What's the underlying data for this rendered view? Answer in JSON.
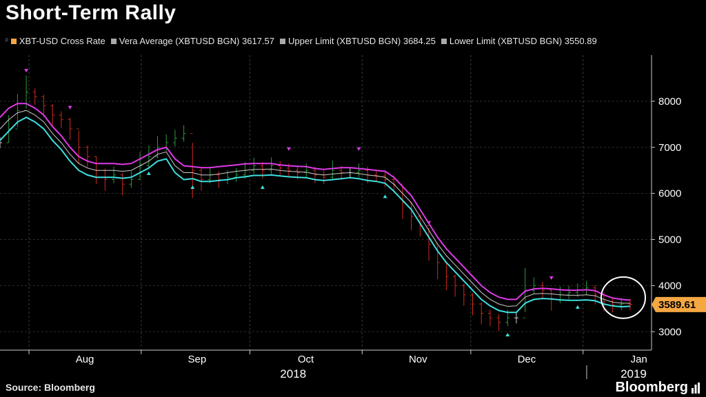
{
  "title": "Short-Term Rally",
  "legend": [
    {
      "label": "XBT-USD Cross Rate",
      "color": "#f5a742"
    },
    {
      "label": "Vera Average (XBTUSD BGN) 3617.57",
      "color": "#aaaaaa"
    },
    {
      "label": "Upper Limit (XBTUSD BGN) 3684.25",
      "color": "#aaaaaa"
    },
    {
      "label": "Lower Limit (XBTUSD BGN) 3550.89",
      "color": "#aaaaaa"
    }
  ],
  "source": "Source: Bloomberg",
  "brand": "Bloomberg",
  "colors": {
    "up": "#2e9a3a",
    "down": "#d42a1a",
    "neutral": "#cfcfcf",
    "band_upper": "#e03ae8",
    "band_lower": "#3fe0e0",
    "average": "#cccccc",
    "last_price_bg": "#f5a742"
  },
  "chart_data": {
    "type": "line",
    "title": "Short-Term Rally",
    "ylim": [
      2600,
      9000
    ],
    "yticks": [
      3000,
      4000,
      5000,
      6000,
      7000,
      8000
    ],
    "ytick_labels": [
      "3000",
      "4000",
      "5000",
      "6000",
      "7000",
      "8000"
    ],
    "x_range_days": [
      0,
      178
    ],
    "xticks": [
      {
        "label": "Aug",
        "day": 24
      },
      {
        "label": "Sep",
        "day": 55
      },
      {
        "label": "Oct",
        "day": 85
      },
      {
        "label": "Nov",
        "day": 116
      },
      {
        "label": "Dec",
        "day": 146
      },
      {
        "label": "Jan",
        "day": 177
      }
    ],
    "month_dividers": [
      8,
      39,
      69,
      100,
      130,
      161
    ],
    "year_labels": [
      {
        "label": "2018",
        "day": 80
      },
      {
        "label": "2019",
        "day": 174
      }
    ],
    "year_divider_day": 162,
    "last_price": "3589.61",
    "last_value": 3589.61,
    "series": [
      {
        "name": "XBT-USD Cross Rate",
        "role": "price",
        "values": [
          7100,
          7400,
          7800,
          8200,
          8100,
          7900,
          7700,
          7600,
          7400,
          7000,
          6800,
          6500,
          6300,
          6400,
          6200,
          6300,
          6600,
          6800,
          7000,
          7100,
          7200,
          7300,
          6500,
          6300,
          6400,
          6300,
          6350,
          6400,
          6500,
          6600,
          6500,
          6600,
          6550,
          6500,
          6450,
          6500,
          6400,
          6350,
          6500,
          6450,
          6450,
          6500,
          6400,
          6380,
          6300,
          6200,
          5800,
          5500,
          5300,
          4900,
          4500,
          4200,
          4000,
          3800,
          3600,
          3400,
          3300,
          3200,
          3300,
          3300,
          3900,
          4000,
          3900,
          3700,
          3800,
          3850,
          3900,
          3950,
          3800,
          3650,
          3580,
          3600,
          3590
        ]
      },
      {
        "name": "Vera Average (XBTUSD BGN)",
        "role": "average",
        "values": [
          7400,
          7600,
          7750,
          7800,
          7700,
          7550,
          7300,
          7100,
          6850,
          6650,
          6550,
          6500,
          6500,
          6500,
          6480,
          6500,
          6600,
          6700,
          6850,
          6900,
          6600,
          6450,
          6450,
          6400,
          6400,
          6420,
          6450,
          6480,
          6500,
          6520,
          6520,
          6530,
          6500,
          6480,
          6470,
          6460,
          6420,
          6400,
          6420,
          6440,
          6450,
          6430,
          6400,
          6380,
          6350,
          6200,
          6000,
          5800,
          5500,
          5200,
          4900,
          4650,
          4450,
          4250,
          4050,
          3850,
          3700,
          3600,
          3550,
          3560,
          3750,
          3820,
          3830,
          3820,
          3800,
          3790,
          3790,
          3800,
          3780,
          3700,
          3640,
          3620,
          3617.57
        ]
      },
      {
        "name": "Upper Limit (XBTUSD BGN)",
        "role": "upper",
        "values": [
          7650,
          7850,
          7950,
          7950,
          7850,
          7700,
          7450,
          7250,
          7000,
          6800,
          6700,
          6650,
          6650,
          6650,
          6630,
          6650,
          6750,
          6850,
          6950,
          7000,
          6750,
          6600,
          6580,
          6560,
          6560,
          6580,
          6600,
          6620,
          6640,
          6650,
          6650,
          6650,
          6620,
          6600,
          6590,
          6580,
          6540,
          6520,
          6540,
          6560,
          6560,
          6540,
          6520,
          6500,
          6480,
          6350,
          6150,
          5950,
          5650,
          5350,
          5050,
          4800,
          4600,
          4400,
          4200,
          4000,
          3850,
          3750,
          3700,
          3700,
          3880,
          3930,
          3940,
          3930,
          3910,
          3900,
          3900,
          3910,
          3890,
          3800,
          3730,
          3700,
          3684.25
        ]
      },
      {
        "name": "Lower Limit (XBTUSD BGN)",
        "role": "lower",
        "values": [
          7150,
          7350,
          7550,
          7650,
          7550,
          7400,
          7150,
          6950,
          6700,
          6500,
          6400,
          6350,
          6350,
          6350,
          6330,
          6350,
          6450,
          6550,
          6700,
          6750,
          6450,
          6300,
          6320,
          6260,
          6260,
          6280,
          6300,
          6340,
          6360,
          6390,
          6390,
          6400,
          6380,
          6360,
          6350,
          6340,
          6300,
          6280,
          6300,
          6320,
          6340,
          6320,
          6280,
          6260,
          6220,
          6050,
          5850,
          5650,
          5350,
          5050,
          4750,
          4500,
          4300,
          4100,
          3900,
          3700,
          3560,
          3460,
          3420,
          3420,
          3620,
          3700,
          3720,
          3710,
          3690,
          3680,
          3680,
          3690,
          3670,
          3600,
          3560,
          3540,
          3550.89
        ]
      }
    ]
  }
}
